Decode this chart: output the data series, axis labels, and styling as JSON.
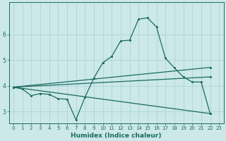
{
  "xlabel": "Humidex (Indice chaleur)",
  "bg_color": "#cce8e8",
  "line_color": "#1a6b60",
  "grid_color": "#aed4d4",
  "xlim": [
    -0.5,
    23.5
  ],
  "ylim": [
    2.55,
    7.25
  ],
  "xticks": [
    0,
    1,
    2,
    3,
    4,
    5,
    6,
    7,
    8,
    9,
    10,
    11,
    12,
    13,
    14,
    15,
    16,
    17,
    18,
    19,
    20,
    21,
    22,
    23
  ],
  "yticks": [
    3,
    4,
    5,
    6
  ],
  "curve_x": [
    0,
    1,
    2,
    3,
    4,
    5,
    6,
    7,
    8,
    9,
    10,
    11,
    12,
    13,
    14,
    15,
    16,
    17,
    18,
    19,
    20,
    21,
    22
  ],
  "curve_y": [
    3.95,
    3.88,
    3.62,
    3.7,
    3.67,
    3.5,
    3.48,
    2.68,
    3.55,
    4.3,
    4.9,
    5.15,
    5.75,
    5.78,
    6.6,
    6.65,
    6.3,
    5.08,
    4.7,
    4.35,
    4.15,
    4.15,
    2.92
  ],
  "upper_line_x": [
    0,
    22
  ],
  "upper_line_y": [
    3.95,
    4.72
  ],
  "mid_line_x": [
    0,
    22
  ],
  "mid_line_y": [
    3.95,
    4.35
  ],
  "lower_line_x": [
    0,
    22
  ],
  "lower_line_y": [
    3.95,
    2.92
  ],
  "xlabel_fontsize": 6.5,
  "tick_fontsize": 5.0
}
